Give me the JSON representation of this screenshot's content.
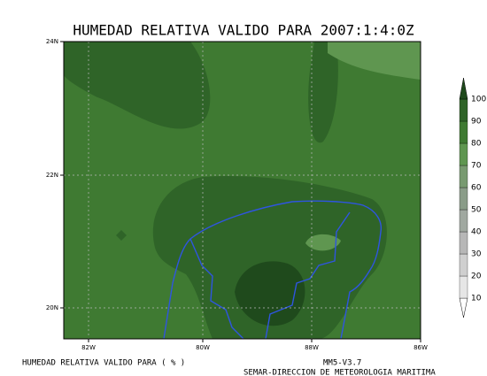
{
  "title": "HUMEDAD RELATIVA VALIDO PARA 2007:1:4:0Z",
  "lat_labels": [
    "24N",
    "22N",
    "20N"
  ],
  "lon_labels": [
    "82W",
    "80W",
    "88W",
    "86W"
  ],
  "colorbar": {
    "levels": [
      10,
      20,
      30,
      40,
      50,
      60,
      70,
      80,
      90,
      100
    ],
    "colors": [
      "#ffffff",
      "#e6e6e6",
      "#cfcfcf",
      "#b7b7b7",
      "#a0a8a0",
      "#8a9c88",
      "#789a70",
      "#5f9650",
      "#3f7a32",
      "#2f6428",
      "#1f4a1c"
    ]
  },
  "footer_left": "HUMEDAD RELATIVA VALIDO PARA ( % )",
  "footer_version": "MM5-V3.7",
  "footer_org": "SEMAR-DIRECCION DE METEOROLOGIA MARITIMA"
}
